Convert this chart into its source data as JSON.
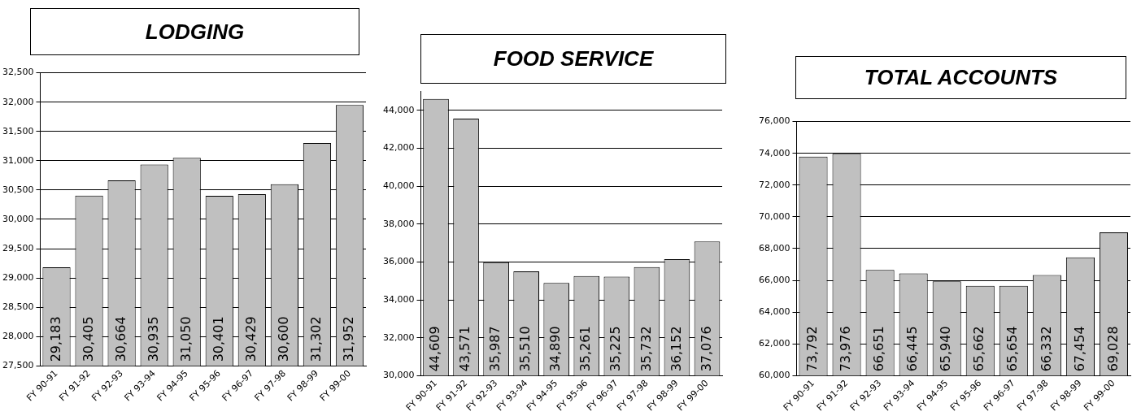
{
  "chart_data": [
    {
      "type": "bar",
      "title": "LODGING",
      "categories": [
        "FY 90-91",
        "FY 91-92",
        "FY 92-93",
        "FY 93-94",
        "FY 94-95",
        "FY 95-96",
        "FY 96-97",
        "FY 97-98",
        "FY 98-99",
        "FY 99-00"
      ],
      "values": [
        29183,
        30405,
        30664,
        30935,
        31050,
        30401,
        30429,
        30600,
        31302,
        31952
      ],
      "color": "#c0c0c0",
      "ylim": [
        27500,
        32500
      ],
      "yticks": [
        {
          "value": 27500,
          "label": "27,500"
        },
        {
          "value": 28000,
          "label": "28,000"
        },
        {
          "value": 28500,
          "label": "28,500"
        },
        {
          "value": 29000,
          "label": "29,000"
        },
        {
          "value": 29500,
          "label": "29,500"
        },
        {
          "value": 30000,
          "label": "30,000"
        },
        {
          "value": 30500,
          "label": "30,500"
        },
        {
          "value": 31000,
          "label": "31,000"
        },
        {
          "value": 31500,
          "label": "31,500"
        },
        {
          "value": 32000,
          "label": "32,000"
        },
        {
          "value": 32500,
          "label": "32,500"
        }
      ],
      "grid": "y",
      "legend": false,
      "value_labels": [
        "29,183",
        "30,405",
        "30,664",
        "30,935",
        "31,050",
        "30,401",
        "30,429",
        "30,600",
        "31,302",
        "31,952"
      ]
    },
    {
      "type": "bar",
      "title": "FOOD SERVICE",
      "categories": [
        "FY 90-91",
        "FY 91-92",
        "FY 92-93",
        "FY 93-94",
        "FY 94-95",
        "FY 95-96",
        "FY 96-97",
        "FY 97-98",
        "FY 98-99",
        "FY 99-00"
      ],
      "values": [
        44609,
        43571,
        35987,
        35510,
        34890,
        35261,
        35225,
        35732,
        36152,
        37076
      ],
      "color": "#c0c0c0",
      "ylim": [
        30000,
        45000
      ],
      "yticks": [
        {
          "value": 30000,
          "label": "30,000"
        },
        {
          "value": 32000,
          "label": "32,000"
        },
        {
          "value": 34000,
          "label": "34,000"
        },
        {
          "value": 36000,
          "label": "36,000"
        },
        {
          "value": 38000,
          "label": "38,000"
        },
        {
          "value": 40000,
          "label": "40,000"
        },
        {
          "value": 42000,
          "label": "42,000"
        },
        {
          "value": 44000,
          "label": "44,000"
        }
      ],
      "grid": "y",
      "legend": false,
      "value_labels": [
        "44,609",
        "43,571",
        "35,987",
        "35,510",
        "34,890",
        "35,261",
        "35,225",
        "35,732",
        "36,152",
        "37,076"
      ]
    },
    {
      "type": "bar",
      "title": "TOTAL ACCOUNTS",
      "categories": [
        "FY 90-91",
        "FY 91-92",
        "FY 92-93",
        "FY 93-94",
        "FY 94-95",
        "FY 95-96",
        "FY 96-97",
        "FY 97-98",
        "FY 98-99",
        "FY 99-00"
      ],
      "values": [
        73792,
        73976,
        66651,
        66445,
        65940,
        65662,
        65654,
        66332,
        67454,
        69028
      ],
      "color": "#c0c0c0",
      "ylim": [
        60000,
        76000
      ],
      "yticks": [
        {
          "value": 60000,
          "label": "60,000"
        },
        {
          "value": 62000,
          "label": "62,000"
        },
        {
          "value": 64000,
          "label": "64,000"
        },
        {
          "value": 66000,
          "label": "66,000"
        },
        {
          "value": 68000,
          "label": "68,000"
        },
        {
          "value": 70000,
          "label": "70,000"
        },
        {
          "value": 72000,
          "label": "72,000"
        },
        {
          "value": 74000,
          "label": "74,000"
        },
        {
          "value": 76000,
          "label": "76,000"
        }
      ],
      "grid": "y",
      "legend": false,
      "value_labels": [
        "73,792",
        "73,976",
        "66,651",
        "66,445",
        "65,940",
        "65,662",
        "65,654",
        "66,332",
        "67,454",
        "69,028"
      ]
    }
  ]
}
